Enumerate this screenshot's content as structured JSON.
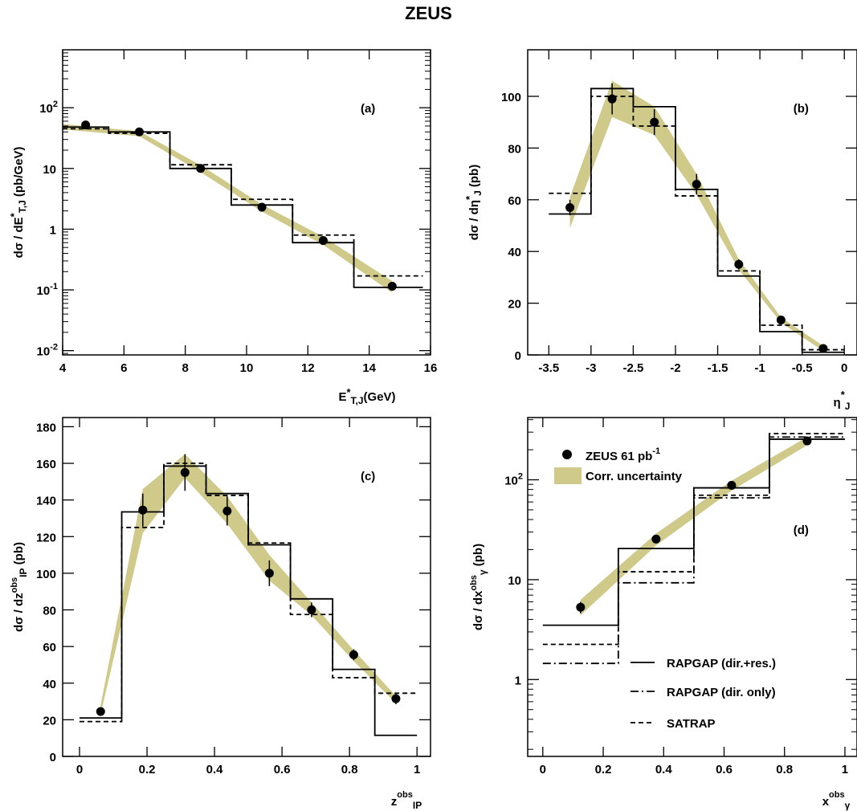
{
  "title": "ZEUS",
  "legend": {
    "data_label": "ZEUS 61 pb",
    "data_label_sup": "-1",
    "band_label": "Corr. uncertainty",
    "solid_label": "RAPGAP (dir.+res.)",
    "dashdot_label": "RAPGAP (dir. only)",
    "dashed_label": "SATRAP"
  },
  "colors": {
    "band": "#cfc98a",
    "marker": "#000000",
    "line": "#000000"
  },
  "chart_data": [
    {
      "type": "line",
      "panel": "(a)",
      "ylabel": "dσ / dE*T,J (pb/GeV)",
      "xlabel": "E*T,J (GeV)",
      "xlim": [
        4,
        16
      ],
      "ylim": [
        0.0085,
        900
      ],
      "yscale": "log",
      "xticks": [
        "4",
        "6",
        "8",
        "10",
        "12",
        "14",
        "16"
      ],
      "yticks": [
        "10-2",
        "10-1",
        "1",
        "10",
        "102"
      ],
      "data": {
        "x": [
          4.75,
          6.5,
          8.5,
          10.5,
          12.5,
          14.75
        ],
        "y": [
          52,
          40,
          10,
          2.3,
          0.65,
          0.115
        ]
      },
      "band": {
        "x": [
          4,
          6.5,
          8.5,
          10.5,
          12.5,
          14.75
        ],
        "lo": [
          44,
          34,
          8.7,
          1.95,
          0.55,
          0.09
        ],
        "hi": [
          54,
          41,
          11.3,
          2.55,
          0.75,
          0.14
        ]
      },
      "solid": {
        "edges": [
          4,
          5.5,
          7.5,
          9.5,
          11.5,
          13.5,
          15.75
        ],
        "values": [
          48,
          40,
          10,
          2.5,
          0.6,
          0.11
        ]
      },
      "dashed": {
        "edges": [
          4,
          5.5,
          7.5,
          9.5,
          11.5,
          13.5,
          15.75
        ],
        "values": [
          45,
          38,
          11.5,
          3.1,
          0.8,
          0.17
        ]
      }
    },
    {
      "type": "line",
      "panel": "(b)",
      "ylabel": "dσ / dη*J (pb)",
      "xlabel": "η*J",
      "xlim": [
        -3.75,
        0.15
      ],
      "ylim": [
        0,
        118
      ],
      "yscale": "linear",
      "xticks": [
        "-3.5",
        "-3",
        "-2.5",
        "-2",
        "-1.5",
        "-1",
        "-0.5",
        "0"
      ],
      "yticks": [
        "0",
        "20",
        "40",
        "60",
        "80",
        "100"
      ],
      "data": {
        "x": [
          -3.25,
          -2.75,
          -2.25,
          -1.75,
          -1.25,
          -0.75,
          -0.25
        ],
        "y": [
          57,
          99,
          90,
          66,
          35,
          13.5,
          2.5
        ],
        "err": [
          3,
          6,
          5,
          4,
          2,
          1.5,
          0.8
        ]
      },
      "band": {
        "x": [
          -3.25,
          -2.75,
          -2.25,
          -1.75,
          -1.25,
          -0.75,
          -0.25
        ],
        "lo": [
          49,
          92,
          85,
          62,
          33,
          12.5,
          1.5
        ],
        "hi": [
          61,
          106,
          96,
          70,
          37,
          14.5,
          3.5
        ]
      },
      "solid": {
        "edges": [
          -3.5,
          -3,
          -2.5,
          -2,
          -1.5,
          -1,
          -0.5,
          0
        ],
        "values": [
          54.5,
          103,
          96,
          64,
          30.5,
          9,
          1
        ]
      },
      "dashed": {
        "edges": [
          -3.5,
          -3,
          -2.5,
          -2,
          -1.5,
          -1,
          -0.5,
          0
        ],
        "values": [
          62.5,
          100,
          88.5,
          61.5,
          32.5,
          11.5,
          2
        ]
      }
    },
    {
      "type": "line",
      "panel": "(c)",
      "ylabel": "dσ / dzobsIP (pb)",
      "xlabel": "zobsIP",
      "xlim": [
        -0.05,
        1.04
      ],
      "ylim": [
        0,
        185
      ],
      "yscale": "linear",
      "xticks": [
        "0",
        "0.2",
        "0.4",
        "0.6",
        "0.8",
        "1"
      ],
      "yticks": [
        "0",
        "20",
        "40",
        "60",
        "80",
        "100",
        "120",
        "140",
        "160",
        "180"
      ],
      "data": {
        "x": [
          0.0625,
          0.1875,
          0.3125,
          0.4375,
          0.5625,
          0.6875,
          0.8125,
          0.9375
        ],
        "y": [
          24.5,
          134.5,
          155,
          134,
          100,
          80,
          55.5,
          31.5
        ],
        "err": [
          2,
          9,
          10,
          8,
          7,
          4,
          3,
          3
        ]
      },
      "band": {
        "x": [
          0.0625,
          0.1875,
          0.3125,
          0.4375,
          0.5625,
          0.6875,
          0.8125,
          0.9375
        ],
        "lo": [
          23,
          122,
          152,
          127,
          96,
          77,
          52,
          29
        ],
        "hi": [
          28,
          146,
          165,
          142,
          110,
          84,
          58,
          33
        ]
      },
      "solid": {
        "edges": [
          0,
          0.125,
          0.25,
          0.375,
          0.5,
          0.625,
          0.75,
          0.875,
          1
        ],
        "values": [
          21,
          133.5,
          158.5,
          143.5,
          115.5,
          86,
          47.5,
          11.5
        ]
      },
      "dashed": {
        "edges": [
          0,
          0.125,
          0.25,
          0.375,
          0.5,
          0.625,
          0.75,
          0.875,
          1
        ],
        "values": [
          19,
          125,
          160,
          142.5,
          116.5,
          77.5,
          43,
          34.5
        ]
      }
    },
    {
      "type": "line",
      "panel": "(d)",
      "ylabel": "dσ / dxobsγ (pb)",
      "xlabel": "xobsγ",
      "xlim": [
        -0.05,
        1.04
      ],
      "ylim": [
        0.17,
        420
      ],
      "yscale": "log",
      "xticks": [
        "0",
        "0.2",
        "0.4",
        "0.6",
        "0.8",
        "1"
      ],
      "yticks": [
        "1",
        "10",
        "102"
      ],
      "data": {
        "x": [
          0.125,
          0.375,
          0.625,
          0.875
        ],
        "y": [
          5.3,
          25.5,
          88,
          245
        ],
        "err": [
          0.7,
          2,
          6,
          15
        ]
      },
      "band": {
        "x": [
          0.125,
          0.375,
          0.625,
          0.875
        ],
        "lo": [
          4.4,
          22,
          78,
          222
        ],
        "hi": [
          6.3,
          29,
          98,
          268
        ]
      },
      "solid": {
        "edges": [
          0,
          0.25,
          0.5,
          0.75,
          1
        ],
        "values": [
          3.5,
          20.5,
          83,
          255
        ]
      },
      "dashdot": {
        "edges": [
          0,
          0.25,
          0.5,
          0.75,
          1
        ],
        "values": [
          1.45,
          9.3,
          66,
          268
        ]
      },
      "dashed": {
        "edges": [
          0,
          0.25,
          0.5,
          0.75,
          1
        ],
        "values": [
          2.25,
          12,
          70,
          290
        ]
      }
    }
  ]
}
